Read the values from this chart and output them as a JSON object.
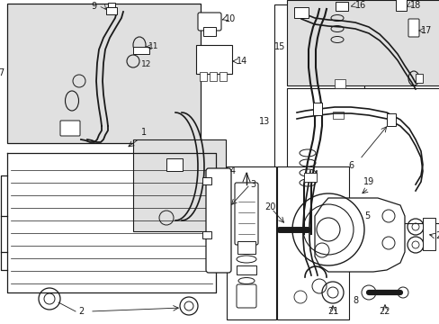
{
  "bg_color": "#ffffff",
  "line_color": "#1a1a1a",
  "box_fill": "#e0e0e0",
  "fig_width": 4.89,
  "fig_height": 3.6,
  "dpi": 100
}
